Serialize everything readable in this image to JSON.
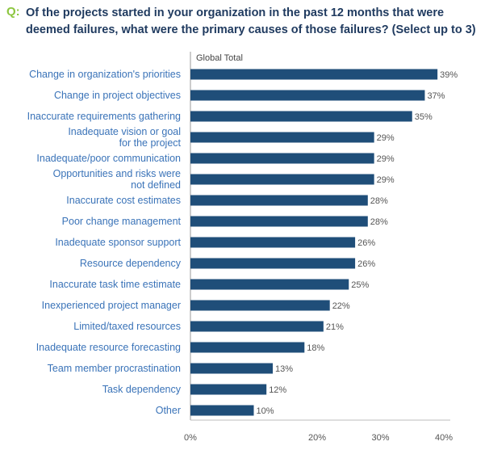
{
  "question": {
    "prefix": "Q:",
    "text": "Of the projects started in your organization in the past 12 months that were deemed failures, what were the primary causes of those failures? (Select up to 3)"
  },
  "chart_data": {
    "type": "bar",
    "orientation": "horizontal",
    "subheading": "Global Total",
    "categories": [
      [
        "Change in organization's priorities"
      ],
      [
        "Change in project objectives"
      ],
      [
        "Inaccurate requirements gathering"
      ],
      [
        "Inadequate vision or goal",
        "for the project"
      ],
      [
        "Inadequate/poor communication"
      ],
      [
        "Opportunities and risks were",
        "not defined"
      ],
      [
        "Inaccurate cost estimates"
      ],
      [
        "Poor change management"
      ],
      [
        "Inadequate sponsor support"
      ],
      [
        "Resource dependency"
      ],
      [
        "Inaccurate task time estimate"
      ],
      [
        "Inexperienced project manager"
      ],
      [
        "Limited/taxed resources"
      ],
      [
        "Inadequate resource forecasting"
      ],
      [
        "Team member procrastination"
      ],
      [
        "Task dependency"
      ],
      [
        "Other"
      ]
    ],
    "values": [
      39,
      37,
      35,
      29,
      29,
      29,
      28,
      28,
      26,
      26,
      25,
      22,
      21,
      18,
      13,
      12,
      10
    ],
    "value_labels": [
      "39%",
      "37%",
      "35%",
      "29%",
      "29%",
      "29%",
      "28%",
      "28%",
      "26%",
      "26%",
      "25%",
      "22%",
      "21%",
      "18%",
      "13%",
      "12%",
      "10%"
    ],
    "x_ticks": [
      0,
      20,
      30,
      40
    ],
    "x_tick_labels": [
      "0%",
      "20%",
      "30%",
      "40%"
    ],
    "xlim": [
      0,
      40
    ],
    "bar_color": "#1f4e79",
    "label_color": "#3a73b8"
  }
}
